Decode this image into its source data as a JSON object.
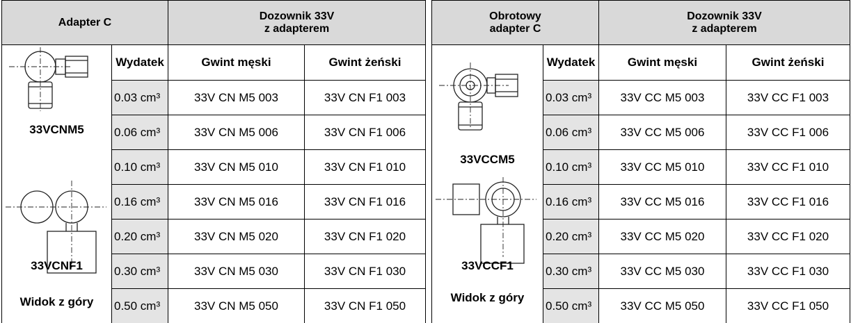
{
  "left": {
    "group_headers": [
      {
        "lines": [
          "Adapter C"
        ]
      },
      {
        "lines": [
          "Dozownik 33V",
          "z adapterem"
        ]
      }
    ],
    "columns": [
      "Wydatek",
      "Gwint męski",
      "Gwint żeński"
    ],
    "image_labels": [
      "33VCNM5",
      "33VCNF1",
      "Widok z góry"
    ],
    "rows": [
      [
        "0.03 cm³",
        "33V CN M5 003",
        "33V CN F1 003"
      ],
      [
        "0.06 cm³",
        "33V CN M5 006",
        "33V CN F1 006"
      ],
      [
        "0.10 cm³",
        "33V CN M5 010",
        "33V CN F1 010"
      ],
      [
        "0.16 cm³",
        "33V CN M5 016",
        "33V CN F1 016"
      ],
      [
        "0.20 cm³",
        "33V CN M5 020",
        "33V CN F1 020"
      ],
      [
        "0.30 cm³",
        "33V CN M5 030",
        "33V CN F1 030"
      ],
      [
        "0.50 cm³",
        "33V CN M5 050",
        "33V CN F1 050"
      ]
    ]
  },
  "right": {
    "group_headers": [
      {
        "lines": [
          "Obrotowy",
          "adapter C"
        ]
      },
      {
        "lines": [
          "Dozownik 33V",
          "z adapterem"
        ]
      }
    ],
    "columns": [
      "Wydatek",
      "Gwint męski",
      "Gwint żeński"
    ],
    "image_labels": [
      "33VCCM5",
      "33VCCF1",
      "Widok z góry"
    ],
    "rows": [
      [
        "0.03 cm³",
        "33V CC M5 003",
        "33V CC F1 003"
      ],
      [
        "0.06 cm³",
        "33V CC M5 006",
        "33V CC F1 006"
      ],
      [
        "0.10 cm³",
        "33V CC M5 010",
        "33V CC F1 010"
      ],
      [
        "0.16 cm³",
        "33V CC M5 016",
        "33V CC F1 016"
      ],
      [
        "0.20 cm³",
        "33V CC M5 020",
        "33V CC F1 020"
      ],
      [
        "0.30 cm³",
        "33V CC M5 030",
        "33V CC F1 030"
      ],
      [
        "0.50 cm³",
        "33V CC M5 050",
        "33V CC F1 050"
      ]
    ]
  }
}
